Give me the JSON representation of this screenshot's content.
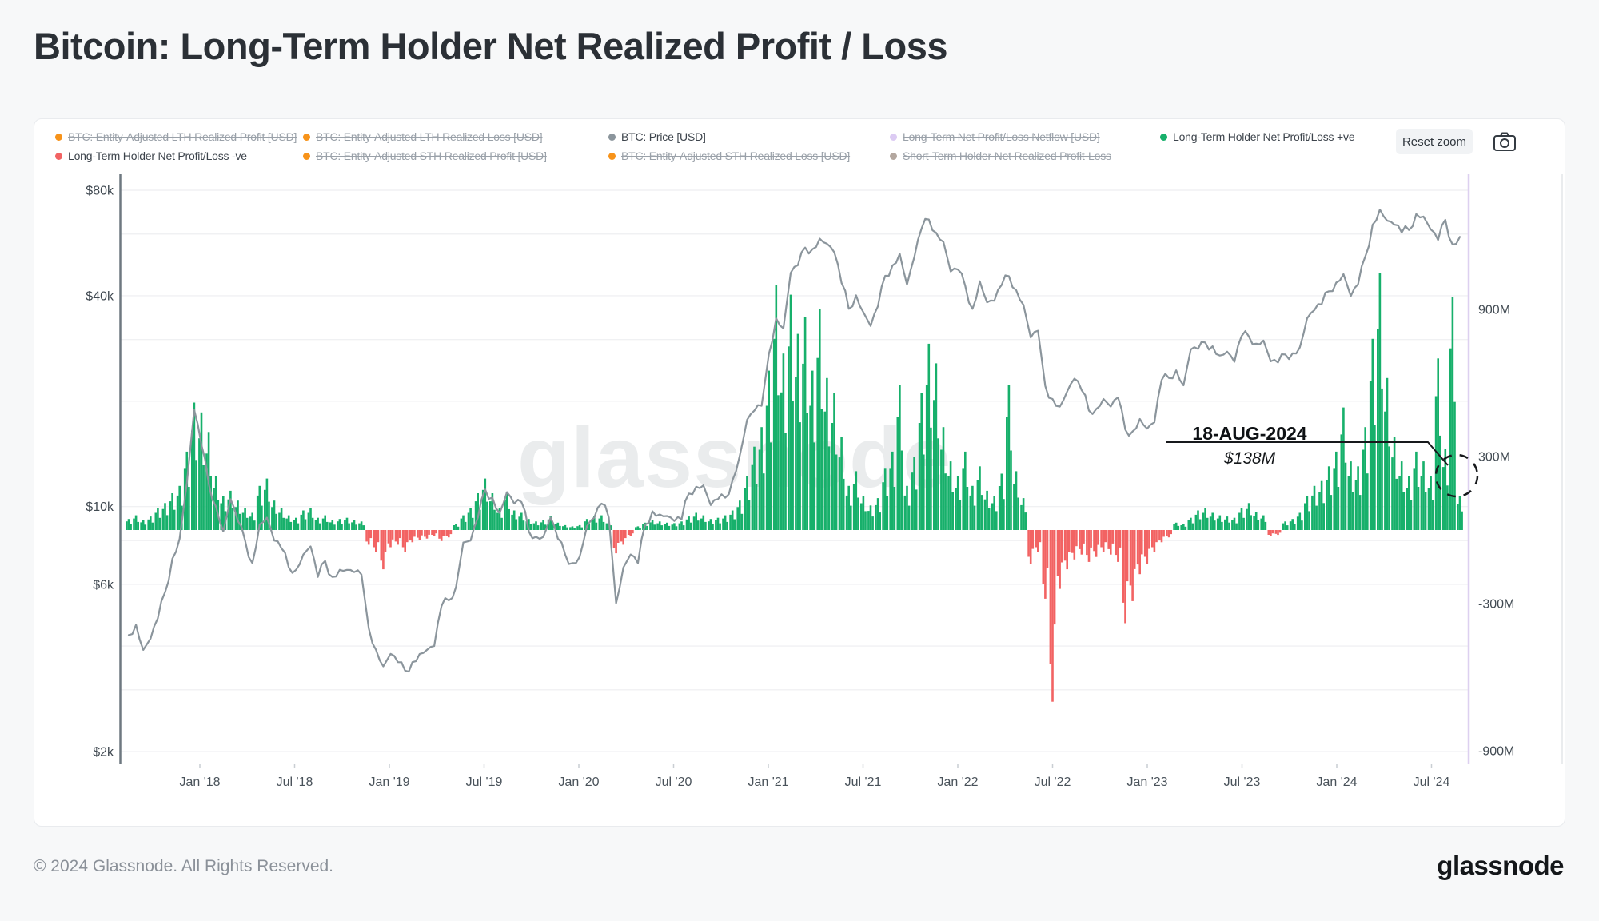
{
  "page": {
    "title": "Bitcoin: Long-Term Holder Net Realized Profit / Loss"
  },
  "toolbar": {
    "reset_zoom": "Reset zoom"
  },
  "watermark": "glassnode",
  "annotation": {
    "date": "18-AUG-2024",
    "value": "$138M"
  },
  "footer": {
    "copyright": "© 2024 Glassnode. All Rights Reserved.",
    "brand": "glassnode"
  },
  "legend": {
    "rows": [
      [
        {
          "label": "BTC: Entity-Adjusted LTH Realized Profit [USD]",
          "color": "#f7931a",
          "struck": true
        },
        {
          "label": "BTC: Entity-Adjusted LTH Realized Loss [USD]",
          "color": "#f7931a",
          "struck": true
        },
        {
          "label": "BTC: Price [USD]",
          "color": "#8b959c",
          "struck": false
        },
        {
          "label": "Long-Term Net Profit/Loss Netflow [USD]",
          "color": "#dccbf3",
          "struck": true
        },
        {
          "label": "Long-Term Holder Net Profit/Loss +ve",
          "color": "#17b06b",
          "struck": false
        }
      ],
      [
        {
          "label": "Long-Term Holder Net Profit/Loss -ve",
          "color": "#f26363",
          "struck": false
        },
        {
          "label": "BTC: Entity-Adjusted STH Realized Profit [USD]",
          "color": "#f7931a",
          "struck": true
        },
        {
          "label": "BTC: Entity-Adjusted STH Realized Loss [USD]",
          "color": "#f7931a",
          "struck": true
        },
        {
          "label": "Short-Term Holder Net Realized Profit-Loss",
          "color": "#b3a79f",
          "struck": true
        }
      ]
    ]
  },
  "chart_data": {
    "type": "mixed",
    "start_date": "2017-08-15",
    "step_days": 14,
    "x_tick_labels": [
      "Jan '18",
      "Jul '18",
      "Jan '19",
      "Jul '19",
      "Jan '20",
      "Jul '20",
      "Jan '21",
      "Jul '21",
      "Jan '22",
      "Jul '22",
      "Jan '23",
      "Jul '23",
      "Jan '24",
      "Jul '24"
    ],
    "left_axis": {
      "type": "log",
      "unit": "USD",
      "ticks": [
        "$80k",
        "$40k",
        "$10k",
        "$6k",
        "$2k"
      ],
      "tick_values": [
        80000,
        40000,
        10000,
        6000,
        2000
      ]
    },
    "right_axis": {
      "type": "linear",
      "unit": "USD millions",
      "ticks": [
        "900M",
        "300M",
        "-300M",
        "-900M"
      ],
      "tick_values": [
        900,
        300,
        -300,
        -900
      ]
    },
    "series": [
      {
        "name": "BTC: Price [USD]",
        "type": "line",
        "axis": "left",
        "color": "#8b959c",
        "values_usd": [
          4300,
          4600,
          3900,
          4200,
          4800,
          5700,
          7100,
          8100,
          11700,
          18900,
          15000,
          11600,
          10000,
          8500,
          10500,
          9100,
          8000,
          6900,
          8900,
          9300,
          8000,
          7600,
          6700,
          6600,
          7300,
          7700,
          6300,
          7000,
          6300,
          6600,
          6600,
          6500,
          6400,
          4500,
          3900,
          3500,
          3800,
          3600,
          3400,
          3600,
          3800,
          3900,
          4000,
          5200,
          5400,
          5900,
          7900,
          8000,
          9300,
          11200,
          10600,
          9600,
          11000,
          10200,
          10300,
          8500,
          8200,
          8200,
          9300,
          8100,
          7300,
          6900,
          7200,
          8800,
          9300,
          10200,
          9300,
          5300,
          6700,
          7300,
          6900,
          8900,
          9700,
          9500,
          9400,
          9100,
          9200,
          10900,
          11400,
          11500,
          10100,
          10500,
          10600,
          11900,
          14000,
          17700,
          18800,
          19400,
          27300,
          34500,
          32300,
          46500,
          48900,
          54900,
          54300,
          58200,
          56300,
          53200,
          43500,
          36700,
          40100,
          35900,
          32800,
          37300,
          45600,
          48800,
          52700,
          43000,
          51500,
          62200,
          66000,
          60500,
          57000,
          46900,
          47500,
          42700,
          36700,
          44000,
          38300,
          38700,
          42900,
          45500,
          41500,
          37700,
          30400,
          31800,
          22100,
          20300,
          19300,
          21300,
          23200,
          21500,
          18800,
          19000,
          20300,
          19300,
          20500,
          16600,
          16400,
          17800,
          16700,
          17400,
          23000,
          23300,
          24500,
          22200,
          28100,
          28200,
          29400,
          28700,
          27000,
          27700,
          25900,
          30700,
          30600,
          29200,
          29800,
          26000,
          25800,
          27200,
          27400,
          28500,
          34500,
          36400,
          37800,
          41200,
          43600,
          46100,
          39900,
          43100,
          51800,
          63800,
          70500,
          65500,
          63800,
          60600,
          61600,
          68400,
          67300,
          61800,
          57700,
          65900,
          56000,
          58900
        ]
      },
      {
        "name": "Long-Term Holder Net Profit/Loss",
        "type": "bar",
        "axis": "right",
        "color_positive": "#17b06b",
        "color_negative": "#f26363",
        "values_musd": [
          45,
          60,
          40,
          55,
          90,
          110,
          150,
          180,
          320,
          520,
          480,
          400,
          220,
          140,
          160,
          120,
          90,
          70,
          180,
          210,
          120,
          90,
          60,
          50,
          80,
          90,
          50,
          60,
          40,
          45,
          50,
          40,
          35,
          -60,
          -90,
          -160,
          -70,
          -60,
          -90,
          -50,
          -40,
          -35,
          -25,
          -45,
          -30,
          25,
          60,
          90,
          150,
          210,
          150,
          90,
          155,
          80,
          70,
          45,
          35,
          40,
          55,
          30,
          20,
          15,
          20,
          45,
          55,
          60,
          35,
          -95,
          -60,
          -25,
          15,
          30,
          40,
          35,
          30,
          28,
          35,
          55,
          70,
          60,
          45,
          50,
          60,
          80,
          120,
          220,
          340,
          420,
          650,
          1000,
          720,
          960,
          800,
          870,
          650,
          900,
          620,
          560,
          380,
          180,
          240,
          140,
          100,
          130,
          250,
          320,
          590,
          180,
          300,
          560,
          760,
          680,
          420,
          280,
          220,
          320,
          180,
          260,
          160,
          140,
          230,
          590,
          240,
          130,
          -140,
          -90,
          -280,
          -700,
          -240,
          -160,
          -120,
          -100,
          -130,
          -110,
          -90,
          -100,
          -130,
          -380,
          -290,
          -180,
          -140,
          -90,
          -50,
          -30,
          30,
          25,
          50,
          80,
          90,
          70,
          60,
          55,
          50,
          90,
          110,
          75,
          60,
          -25,
          -20,
          35,
          45,
          70,
          140,
          180,
          200,
          260,
          320,
          500,
          280,
          260,
          420,
          780,
          1050,
          620,
          380,
          280,
          220,
          320,
          280,
          220,
          700,
          330,
          950,
          138
        ]
      }
    ],
    "annotation": {
      "label": "18-AUG-2024",
      "value": "$138M"
    }
  }
}
